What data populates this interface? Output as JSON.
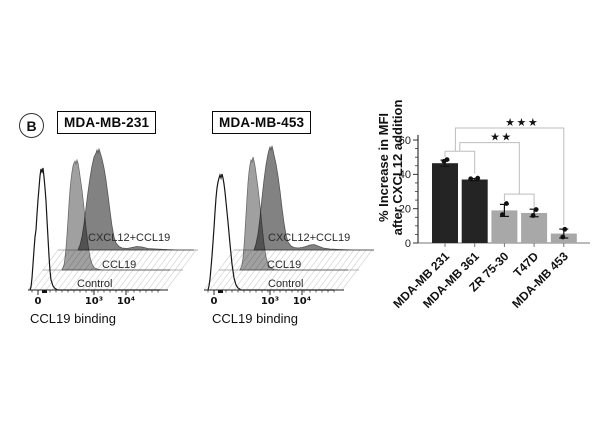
{
  "panel_label": "B",
  "flow_plots": [
    {
      "title": "MDA-MB-231",
      "x_axis_label": "CCL19 binding",
      "x_ticks": [
        "0",
        "10³",
        "10⁴"
      ],
      "series_labels": {
        "top": "CXCL12+CCL19",
        "middle": "CCL19",
        "bottom": "Control"
      }
    },
    {
      "title": "MDA-MB-453",
      "x_axis_label": "CCL19 binding",
      "x_ticks": [
        "0",
        "10³",
        "10⁴"
      ],
      "series_labels": {
        "top": "CXCL12+CCL19",
        "middle": "CCL19",
        "bottom": "Control"
      }
    }
  ],
  "chart_data": {
    "type": "bar",
    "title": "",
    "ylabel_lines": [
      "% Increase in MFI",
      "after CXCL12 addition"
    ],
    "categories": [
      "MDA-MB 231",
      "MDA-MB 361",
      "ZR 75-30",
      "T47D",
      "MDA-MB 453"
    ],
    "values": [
      46.5,
      37,
      19,
      17.5,
      5.5
    ],
    "errors": [
      1.8,
      0.6,
      3.5,
      2.2,
      2.6
    ],
    "points": [
      [
        [
          47.6,
          -1
        ],
        [
          48.6,
          2
        ]
      ],
      [
        [
          37.4,
          -4
        ],
        [
          37.8,
          3
        ]
      ],
      [
        [
          23,
          2
        ],
        [
          16.5,
          -2
        ]
      ],
      [
        [
          19.5,
          2
        ],
        [
          16,
          -1
        ]
      ],
      [
        [
          8,
          1
        ],
        [
          3.5,
          -1
        ]
      ]
    ],
    "bar_colors": [
      "#242424",
      "#242424",
      "#a8a8a8",
      "#a8a8a8",
      "#a8a8a8"
    ],
    "ylim": [
      0,
      63
    ],
    "yticks_major": [
      0,
      20,
      40,
      60
    ],
    "ytick_minor_step": 5,
    "grid": false,
    "legend": "none",
    "sig_color": "#bdbdbd",
    "significance": [
      {
        "label": "",
        "points_cat": [
          [
            0,
            50
          ],
          [
            0,
            53.5
          ],
          [
            1,
            53.5
          ],
          [
            1,
            40.5
          ]
        ]
      },
      {
        "label": "",
        "points_cat": [
          [
            2,
            24.5
          ],
          [
            2,
            28.5
          ],
          [
            3,
            28.5
          ],
          [
            3,
            20.5
          ]
        ]
      },
      {
        "label": "★★",
        "points_cat": [
          [
            0.5,
            53.5
          ],
          [
            0.5,
            58.5
          ],
          [
            2.5,
            58.5
          ],
          [
            2.5,
            28.5
          ]
        ],
        "label_cat": 1.9,
        "label_val": 59.8
      },
      {
        "label": "★★★",
        "points_cat": [
          [
            0.35,
            53.5
          ],
          [
            0.35,
            67
          ],
          [
            4,
            67
          ],
          [
            4,
            10.5
          ]
        ],
        "label_cat": 2.6,
        "label_val": 68.3
      }
    ]
  }
}
